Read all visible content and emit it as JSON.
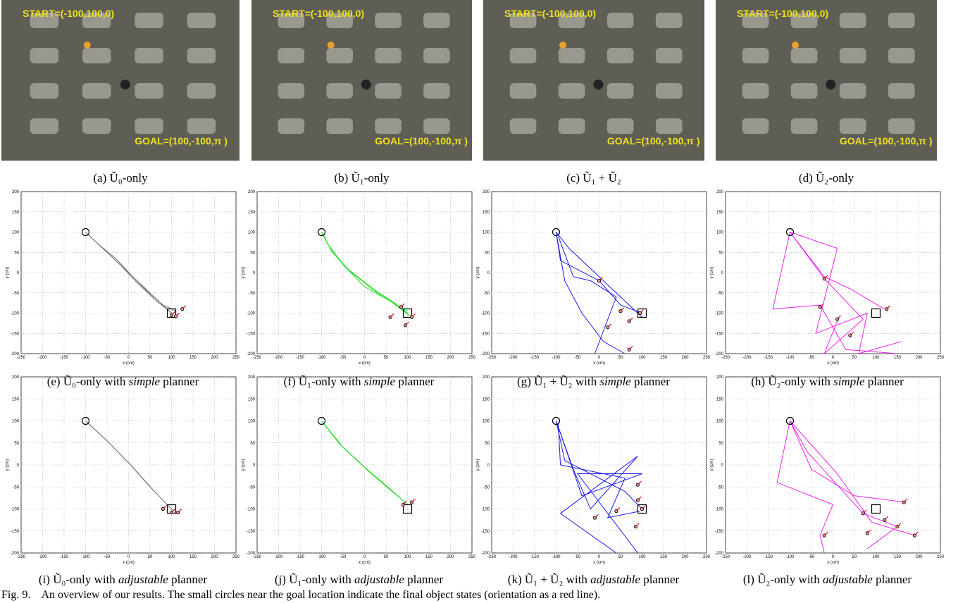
{
  "photos": [
    {
      "start": "START=(-100,100,0)",
      "goal": "GOAL=(100,-100,π )",
      "caption": {
        "tag": "(a)",
        "math": "Ũ₀-only"
      }
    },
    {
      "start": "START=(-100,100,0)",
      "goal": "GOAL=(100,-100,π )",
      "caption": {
        "tag": "(b)",
        "math": "Ũ₁-only"
      }
    },
    {
      "start": "START=(-100,100,0)",
      "goal": "GOAL=(100,-100,π )",
      "caption": {
        "tag": "(c)",
        "math": "Ũ₁ + Ũ₂"
      }
    },
    {
      "start": "START=(-100,100,0)",
      "goal": "GOAL=(100,-100,π )",
      "caption": {
        "tag": "(d)",
        "math": "Ũ₂-only"
      }
    }
  ],
  "plots": [
    {
      "caption": {
        "tag": "(e)",
        "math": "Ũ₀-only",
        "pre": "with",
        "em": "simple",
        "post": "planner"
      },
      "xlabel": "x (cm)",
      "ylabel": "y (cm)",
      "color": "#777777",
      "xlim": [
        -250,
        250
      ],
      "ylim": [
        -200,
        200
      ],
      "xticks": [
        -250,
        -200,
        -150,
        -100,
        -50,
        0,
        50,
        100,
        150,
        200,
        250
      ],
      "yticks": [
        -200,
        -150,
        -100,
        -50,
        0,
        50,
        100,
        150,
        200
      ],
      "start": {
        "x": -100,
        "y": 100
      },
      "goal": {
        "x": 100,
        "y": -100
      },
      "paths": [
        {
          "x": [
            -100,
            -60,
            -20,
            20,
            60,
            100
          ],
          "y": [
            100,
            60,
            20,
            -25,
            -65,
            -100
          ]
        },
        {
          "x": [
            -98,
            -55,
            -10,
            40,
            80,
            105
          ],
          "y": [
            98,
            55,
            10,
            -40,
            -80,
            -105
          ]
        },
        {
          "x": [
            -95,
            -70,
            -30,
            10,
            70,
            110
          ],
          "y": [
            95,
            70,
            35,
            -10,
            -75,
            -95
          ]
        }
      ],
      "finals": {
        "x": [
          125,
          100,
          110
        ],
        "y": [
          -90,
          -105,
          -108
        ]
      }
    },
    {
      "caption": {
        "tag": "(f)",
        "math": "Ũ₁-only",
        "pre": "with",
        "em": "simple",
        "post": "planner"
      },
      "xlabel": "x (cm)",
      "ylabel": "y (cm)",
      "color": "#22dd22",
      "xlim": [
        -250,
        250
      ],
      "ylim": [
        -200,
        200
      ],
      "xticks": [
        -250,
        -200,
        -150,
        -100,
        -50,
        0,
        50,
        100,
        150,
        200,
        250
      ],
      "yticks": [
        -200,
        -150,
        -100,
        -50,
        0,
        50,
        100,
        150,
        200
      ],
      "start": {
        "x": -100,
        "y": 100
      },
      "goal": {
        "x": 100,
        "y": -100
      },
      "paths": [
        {
          "x": [
            -100,
            -80,
            -40,
            20,
            70,
            100
          ],
          "y": [
            100,
            60,
            10,
            -40,
            -75,
            -100
          ]
        },
        {
          "x": [
            -100,
            -85,
            -50,
            0,
            60,
            110
          ],
          "y": [
            100,
            70,
            20,
            -35,
            -70,
            -110
          ]
        },
        {
          "x": [
            -98,
            -75,
            -30,
            30,
            90,
            100
          ],
          "y": [
            98,
            50,
            0,
            -50,
            -90,
            -95
          ]
        }
      ],
      "finals": {
        "x": [
          60,
          95,
          110,
          85
        ],
        "y": [
          -110,
          -130,
          -110,
          -85
        ]
      }
    },
    {
      "caption": {
        "tag": "(g)",
        "math": "Ũ₁ + Ũ₂",
        "pre": "with",
        "em": "simple",
        "post": "planner"
      },
      "xlabel": "x (cm)",
      "ylabel": "y (cm)",
      "color": "#1a1aee",
      "xlim": [
        -250,
        250
      ],
      "ylim": [
        -200,
        200
      ],
      "xticks": [
        -250,
        -200,
        -150,
        -100,
        -50,
        0,
        50,
        100,
        150,
        200,
        250
      ],
      "yticks": [
        -200,
        -150,
        -100,
        -50,
        0,
        50,
        100,
        150,
        200
      ],
      "start": {
        "x": -100,
        "y": 100
      },
      "goal": {
        "x": 100,
        "y": -100
      },
      "paths": [
        {
          "x": [
            -100,
            -90,
            0,
            50,
            100
          ],
          "y": [
            100,
            30,
            -20,
            -80,
            -100
          ]
        },
        {
          "x": [
            -100,
            -80,
            -40,
            10,
            60
          ],
          "y": [
            100,
            -20,
            -100,
            -170,
            -200
          ]
        },
        {
          "x": [
            -100,
            -70,
            30,
            80,
            100
          ],
          "y": [
            100,
            60,
            -40,
            -90,
            -110
          ]
        },
        {
          "x": [
            -95,
            -60,
            -20,
            40,
            -10
          ],
          "y": [
            90,
            -10,
            -20,
            -60,
            -200
          ]
        }
      ],
      "finals": {
        "x": [
          0,
          50,
          70,
          20,
          70,
          95
        ],
        "y": [
          -20,
          -95,
          -120,
          -135,
          -190,
          -100
        ]
      }
    },
    {
      "caption": {
        "tag": "(h)",
        "math": "Ũ₂-only",
        "pre": "with",
        "em": "simple",
        "post": "planner"
      },
      "xlabel": "x (cm)",
      "ylabel": "y (cm)",
      "color": "#ee22ee",
      "xlim": [
        -250,
        250
      ],
      "ylim": [
        -200,
        200
      ],
      "xticks": [
        -250,
        -200,
        -150,
        -100,
        -50,
        0,
        50,
        100,
        150,
        200,
        250
      ],
      "yticks": [
        -200,
        -150,
        -100,
        -50,
        0,
        50,
        100,
        150,
        200
      ],
      "start": {
        "x": -100,
        "y": 100
      },
      "goal": {
        "x": 100,
        "y": -100
      },
      "paths": [
        {
          "x": [
            -100,
            -20,
            40,
            120
          ],
          "y": [
            100,
            -10,
            -40,
            -90
          ]
        },
        {
          "x": [
            -100,
            -140,
            -30,
            30,
            150
          ],
          "y": [
            100,
            -90,
            -80,
            -190,
            -200
          ]
        },
        {
          "x": [
            -100,
            10,
            -40,
            80,
            60,
            160
          ],
          "y": [
            100,
            60,
            -150,
            -100,
            -200,
            -170
          ]
        },
        {
          "x": [
            -100,
            -20,
            70,
            -20,
            10
          ],
          "y": [
            100,
            -15,
            -115,
            -200,
            -120
          ]
        }
      ],
      "finals": {
        "x": [
          -20,
          -30,
          10,
          40,
          125
        ],
        "y": [
          -15,
          -85,
          -115,
          -155,
          -90
        ]
      }
    },
    {
      "caption": {
        "tag": "(i)",
        "math": "Ũ₀-only",
        "pre": "with",
        "em": "adjustable",
        "post": "planner"
      },
      "xlabel": "x (cm)",
      "ylabel": "y (cm)",
      "color": "#777777",
      "xlim": [
        -250,
        250
      ],
      "ylim": [
        -200,
        200
      ],
      "xticks": [
        -250,
        -200,
        -150,
        -100,
        -50,
        0,
        50,
        100,
        150,
        200,
        250
      ],
      "yticks": [
        -200,
        -150,
        -100,
        -50,
        0,
        50,
        100,
        150,
        200
      ],
      "start": {
        "x": -100,
        "y": 100
      },
      "goal": {
        "x": 100,
        "y": -100
      },
      "paths": [
        {
          "x": [
            -100,
            -50,
            0,
            50,
            100
          ],
          "y": [
            100,
            55,
            5,
            -50,
            -100
          ]
        },
        {
          "x": [
            -98,
            -45,
            5,
            60,
            105
          ],
          "y": [
            98,
            50,
            0,
            -60,
            -105
          ]
        }
      ],
      "finals": {
        "x": [
          80,
          100,
          115
        ],
        "y": [
          -100,
          -108,
          -108
        ]
      }
    },
    {
      "caption": {
        "tag": "(j)",
        "math": "Ũ₁-only",
        "pre": "with",
        "em": "adjustable",
        "post": "planner"
      },
      "xlabel": "x (cm)",
      "ylabel": "y (cm)",
      "color": "#22dd22",
      "xlim": [
        -250,
        250
      ],
      "ylim": [
        -200,
        200
      ],
      "xticks": [
        -250,
        -200,
        -150,
        -100,
        -50,
        0,
        50,
        100,
        150,
        200,
        250
      ],
      "yticks": [
        -200,
        -150,
        -100,
        -50,
        0,
        50,
        100,
        150,
        200
      ],
      "start": {
        "x": -100,
        "y": 100
      },
      "goal": {
        "x": 100,
        "y": -100
      },
      "paths": [
        {
          "x": [
            -100,
            -60,
            0,
            60,
            100
          ],
          "y": [
            100,
            50,
            -5,
            -55,
            -90
          ]
        },
        {
          "x": [
            -98,
            -50,
            10,
            70,
            95
          ],
          "y": [
            98,
            40,
            -15,
            -65,
            -85
          ]
        }
      ],
      "finals": {
        "x": [
          90,
          110
        ],
        "y": [
          -90,
          -85
        ]
      }
    },
    {
      "caption": {
        "tag": "(k)",
        "math": "Ũ₁ + Ũ₂",
        "pre": "with",
        "em": "adjustable",
        "post": "planner"
      },
      "xlabel": "x (cm)",
      "ylabel": "y (cm)",
      "color": "#1a1aee",
      "xlim": [
        -250,
        250
      ],
      "ylim": [
        -200,
        200
      ],
      "xticks": [
        -250,
        -200,
        -150,
        -100,
        -50,
        0,
        50,
        100,
        150,
        200,
        250
      ],
      "yticks": [
        -200,
        -150,
        -100,
        -50,
        0,
        50,
        100,
        150,
        200
      ],
      "start": {
        "x": -100,
        "y": 100
      },
      "goal": {
        "x": 100,
        "y": -100
      },
      "paths": [
        {
          "x": [
            -100,
            -80,
            60,
            100
          ],
          "y": [
            100,
            10,
            -60,
            -100
          ]
        },
        {
          "x": [
            -100,
            -60,
            -20,
            90,
            -90,
            40
          ],
          "y": [
            100,
            -10,
            -100,
            20,
            -110,
            -200
          ]
        },
        {
          "x": [
            -100,
            -40,
            100,
            -50,
            90
          ],
          "y": [
            100,
            -70,
            -20,
            -20,
            -200
          ]
        },
        {
          "x": [
            -95,
            -90,
            60,
            20,
            95
          ],
          "y": [
            95,
            0,
            -30,
            -120,
            -105
          ]
        }
      ],
      "finals": {
        "x": [
          -10,
          40,
          90,
          90,
          85,
          100
        ],
        "y": [
          -120,
          -105,
          -45,
          -80,
          -140,
          -100
        ]
      }
    },
    {
      "caption": {
        "tag": "(l)",
        "math": "Ũ₂-only",
        "pre": "with",
        "em": "adjustable",
        "post": "planner"
      },
      "xlabel": "x (cm)",
      "ylabel": "y (cm)",
      "color": "#ee22ee",
      "xlim": [
        -250,
        250
      ],
      "ylim": [
        -200,
        200
      ],
      "xticks": [
        -250,
        -200,
        -150,
        -100,
        -50,
        0,
        50,
        100,
        150,
        200,
        250
      ],
      "yticks": [
        -200,
        -150,
        -100,
        -50,
        0,
        50,
        100,
        150,
        200
      ],
      "start": {
        "x": -100,
        "y": 100
      },
      "goal": {
        "x": 100,
        "y": -100
      },
      "paths": [
        {
          "x": [
            -100,
            -50,
            50,
            170
          ],
          "y": [
            100,
            -10,
            -70,
            -85
          ]
        },
        {
          "x": [
            -100,
            -130,
            0,
            -30,
            -20
          ],
          "y": [
            100,
            -40,
            -90,
            -160,
            -200
          ]
        },
        {
          "x": [
            -100,
            10,
            90,
            190
          ],
          "y": [
            100,
            -20,
            -130,
            -160
          ]
        },
        {
          "x": [
            -100,
            -60,
            70,
            150,
            80
          ],
          "y": [
            100,
            30,
            -110,
            -140,
            -190
          ]
        }
      ],
      "finals": {
        "x": [
          -20,
          70,
          80,
          120,
          150,
          190,
          165
        ],
        "y": [
          -160,
          -110,
          -155,
          -125,
          -140,
          -160,
          -85
        ]
      }
    }
  ],
  "figure_caption": {
    "label": "Fig. 9.",
    "text": "An overview of our results. The small circles near the goal location indicate the final object states (orientation as a red line)."
  }
}
